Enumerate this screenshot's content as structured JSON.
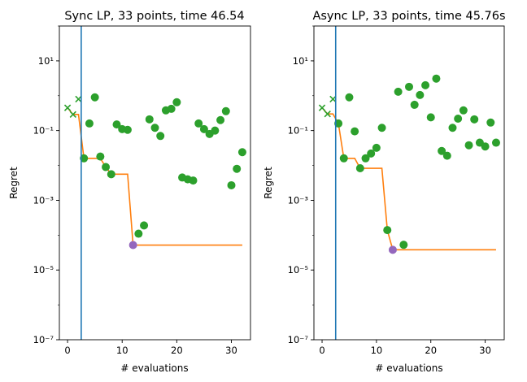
{
  "chart_data": [
    {
      "type": "scatter",
      "title": "Sync LP, 33 points, time 46.54",
      "xlabel": "# evaluations",
      "ylabel": "Regret",
      "yscale": "log",
      "xlim": [
        -1.5,
        33.5
      ],
      "ylim": [
        1e-07,
        100
      ],
      "xticks": [
        0,
        10,
        20,
        30
      ],
      "xtick_labels": [
        "0",
        "10",
        "20",
        "30"
      ],
      "yticks": [
        1e-07,
        1e-05,
        0.001,
        0.1,
        10
      ],
      "ytick_labels": [
        "10⁻⁷",
        "10⁻⁵",
        "10⁻³",
        "10⁻¹",
        "10¹"
      ],
      "grid": false,
      "vline_x": 2.5,
      "initial_points": 3,
      "best_index": 12,
      "x": [
        0,
        1,
        2,
        3,
        4,
        5,
        6,
        7,
        8,
        9,
        10,
        11,
        12,
        13,
        14,
        15,
        16,
        17,
        18,
        19,
        20,
        21,
        22,
        23,
        24,
        25,
        26,
        27,
        28,
        29,
        30,
        31,
        32
      ],
      "y": [
        0.45,
        0.29,
        0.8,
        0.016,
        0.16,
        0.9,
        0.018,
        0.009,
        0.0056,
        0.15,
        0.11,
        0.105,
        5.2e-05,
        0.00011,
        0.00019,
        0.21,
        0.12,
        0.07,
        0.38,
        0.42,
        0.65,
        0.0045,
        0.004,
        0.0037,
        0.16,
        0.11,
        0.08,
        0.1,
        0.2,
        0.36,
        0.0027,
        0.008,
        0.024
      ]
    },
    {
      "type": "scatter",
      "title": "Async LP, 33 points, time 45.76s",
      "xlabel": "# evaluations",
      "ylabel": "Regret",
      "yscale": "log",
      "xlim": [
        -1.5,
        33.5
      ],
      "ylim": [
        1e-07,
        100
      ],
      "xticks": [
        0,
        10,
        20,
        30
      ],
      "xtick_labels": [
        "0",
        "10",
        "20",
        "30"
      ],
      "yticks": [
        1e-07,
        1e-05,
        0.001,
        0.1,
        10
      ],
      "ytick_labels": [
        "10⁻⁷",
        "10⁻⁵",
        "10⁻³",
        "10⁻¹",
        "10¹"
      ],
      "grid": false,
      "vline_x": 2.5,
      "initial_points": 3,
      "best_index": 13,
      "x": [
        0,
        1,
        2,
        3,
        4,
        5,
        6,
        7,
        8,
        9,
        10,
        11,
        12,
        13,
        14,
        15,
        16,
        17,
        18,
        19,
        20,
        21,
        22,
        23,
        24,
        25,
        26,
        27,
        28,
        29,
        30,
        31,
        32
      ],
      "y": [
        0.45,
        0.3,
        0.8,
        0.16,
        0.016,
        0.9,
        0.095,
        0.0083,
        0.016,
        0.022,
        0.032,
        0.12,
        0.00014,
        3.8e-05,
        1.3,
        5.3e-05,
        1.8,
        0.55,
        1.05,
        2.0,
        0.24,
        3.1,
        0.026,
        0.019,
        0.12,
        0.22,
        0.38,
        0.038,
        0.21,
        0.045,
        0.035,
        0.17,
        0.045
      ]
    }
  ],
  "colors": {
    "points": "#2ca02c",
    "best_so_far": "#ff7f0e",
    "vline": "#1f77b4",
    "best_point": "#9467bd"
  }
}
